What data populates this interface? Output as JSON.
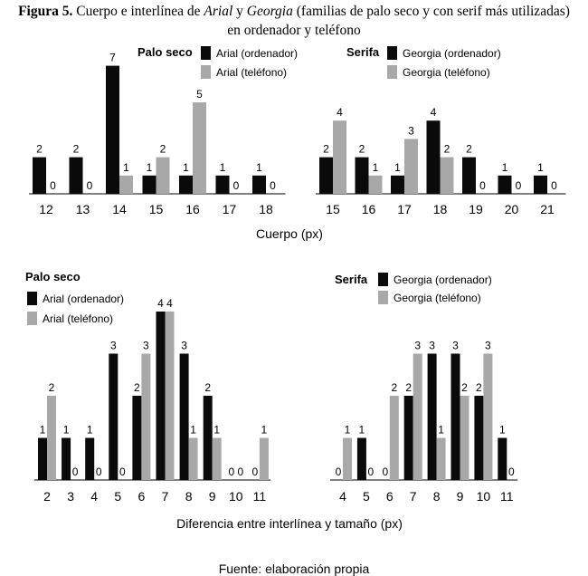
{
  "figure": {
    "label": "Figura 5.",
    "title_pre": "Cuerpo e interlínea de ",
    "font_a": "Arial",
    "title_mid": " y ",
    "font_b": "Georgia",
    "title_post": " (familias de palo seco y con serif más utilizadas)",
    "title_line2": "en ordenador y teléfono",
    "source": "Fuente: elaboración propia"
  },
  "colors": {
    "computer": "#0a0a0a",
    "phone": "#a8a8a8"
  },
  "shared_xlabels": {
    "top": "Cuerpo (px)",
    "bottom": "Diferencia entre interlínea y tamaño (px)"
  },
  "chart_data": [
    {
      "type": "bar",
      "group_title": "Palo seco",
      "categories": [
        "12",
        "13",
        "14",
        "15",
        "16",
        "17",
        "18"
      ],
      "series": [
        {
          "name": "Arial (ordenador)",
          "values": [
            2,
            2,
            7,
            1,
            1,
            1,
            1
          ]
        },
        {
          "name": "Arial (teléfono)",
          "values": [
            0,
            0,
            1,
            2,
            5,
            0,
            0
          ]
        }
      ],
      "xlabel": "Cuerpo (px)",
      "ylabel": "",
      "ylim": [
        0,
        7
      ],
      "legend_position": "top",
      "grid": false
    },
    {
      "type": "bar",
      "group_title": "Serifa",
      "categories": [
        "15",
        "16",
        "17",
        "18",
        "19",
        "20",
        "21"
      ],
      "series": [
        {
          "name": "Georgia (ordenador)",
          "values": [
            2,
            2,
            1,
            4,
            2,
            1,
            1
          ]
        },
        {
          "name": "Georgia (teléfono)",
          "values": [
            4,
            1,
            3,
            2,
            0,
            0,
            0
          ]
        }
      ],
      "xlabel": "Cuerpo (px)",
      "ylabel": "",
      "ylim": [
        0,
        7
      ],
      "legend_position": "top",
      "grid": false
    },
    {
      "type": "bar",
      "group_title": "Palo seco",
      "categories": [
        "2",
        "3",
        "4",
        "5",
        "6",
        "7",
        "8",
        "9",
        "10",
        "11"
      ],
      "series": [
        {
          "name": "Arial (ordenador)",
          "values": [
            1,
            1,
            1,
            3,
            2,
            4,
            3,
            2,
            0,
            0
          ]
        },
        {
          "name": "Arial (teléfono)",
          "values": [
            2,
            0,
            0,
            0,
            3,
            4,
            1,
            1,
            0,
            1
          ]
        }
      ],
      "xlabel": "Diferencia entre interlínea y tamaño (px)",
      "ylabel": "",
      "ylim": [
        0,
        4
      ],
      "legend_position": "top-left",
      "grid": false
    },
    {
      "type": "bar",
      "group_title": "Serifa",
      "categories": [
        "4",
        "5",
        "6",
        "7",
        "8",
        "9",
        "10",
        "11"
      ],
      "series": [
        {
          "name": "Georgia (ordenador)",
          "values": [
            0,
            1,
            0,
            2,
            3,
            3,
            2,
            1
          ]
        },
        {
          "name": "Georgia (teléfono)",
          "values": [
            1,
            0,
            2,
            3,
            1,
            2,
            3,
            0
          ]
        }
      ],
      "xlabel": "Diferencia entre interlínea y tamaño (px)",
      "ylabel": "",
      "ylim": [
        0,
        4
      ],
      "legend_position": "top",
      "grid": false
    }
  ]
}
